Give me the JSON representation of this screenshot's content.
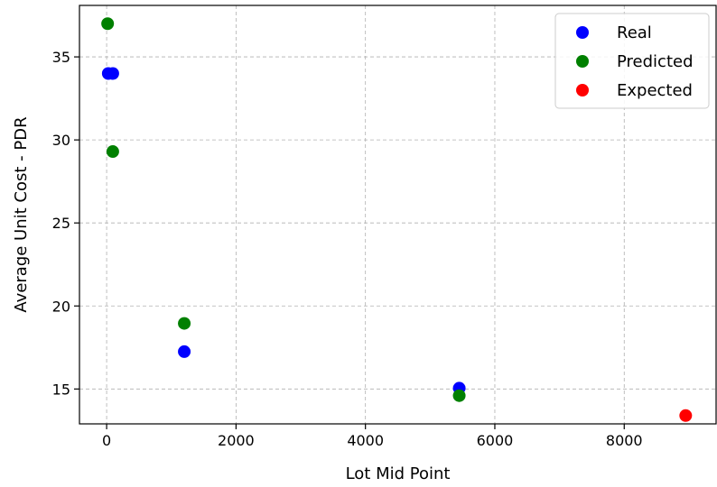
{
  "chart_data": {
    "type": "scatter",
    "xlabel": "Lot Mid Point",
    "ylabel": "Average Unit Cost - PDR",
    "xlim": [
      -420,
      9420
    ],
    "ylim": [
      12.9,
      38.1
    ],
    "x_ticks": [
      0,
      2000,
      4000,
      6000,
      8000
    ],
    "y_ticks": [
      15,
      20,
      25,
      30,
      35
    ],
    "grid": true,
    "legend_position": "top-right",
    "series": [
      {
        "name": "Real",
        "color": "#0000ff",
        "points": [
          {
            "x": 25,
            "y": 34.0
          },
          {
            "x": 95,
            "y": 34.0
          },
          {
            "x": 1200,
            "y": 17.25
          },
          {
            "x": 5450,
            "y": 15.05
          }
        ]
      },
      {
        "name": "Predicted",
        "color": "#008000",
        "points": [
          {
            "x": 15,
            "y": 37.0
          },
          {
            "x": 95,
            "y": 29.3
          },
          {
            "x": 1200,
            "y": 18.95
          },
          {
            "x": 5450,
            "y": 14.6
          }
        ]
      },
      {
        "name": "Expected",
        "color": "#ff0000",
        "points": [
          {
            "x": 8950,
            "y": 13.4
          }
        ]
      }
    ]
  }
}
